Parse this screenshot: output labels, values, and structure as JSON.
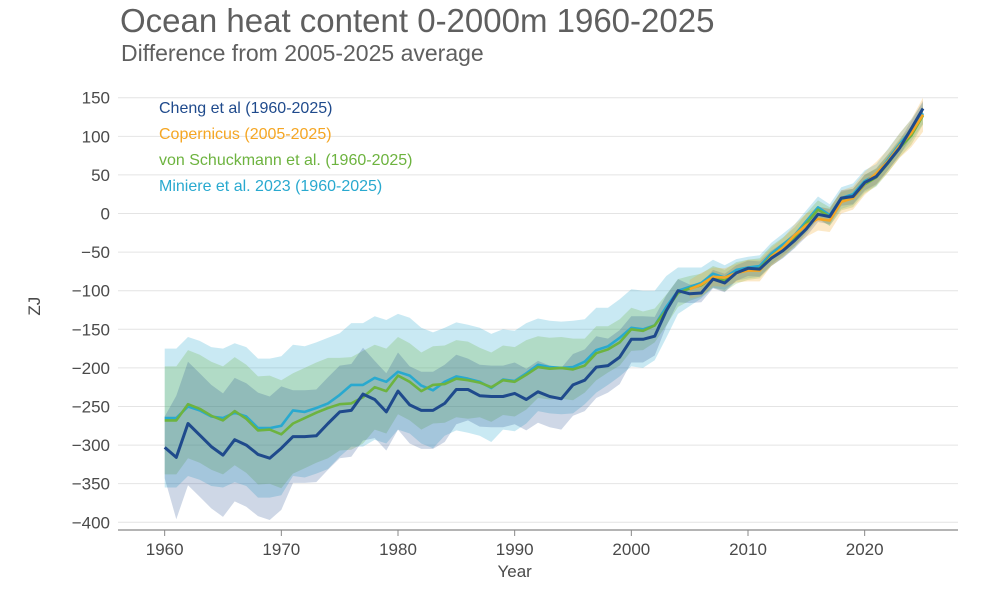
{
  "title": "Ocean heat content 0-2000m 1960-2025",
  "subtitle": "Difference from 2005-2025 average",
  "colors": {
    "cheng": "#1f4a8c",
    "copernicus": "#f5a623",
    "schuckmann": "#6db33f",
    "miniere": "#29a9cf",
    "grid": "#e4e4e4",
    "axis": "#888888"
  },
  "chart_data": {
    "type": "line",
    "title": "Ocean heat content 0-2000m 1960-2025",
    "subtitle": "Difference from 2005-2025 average",
    "xlabel": "Year",
    "ylabel": "ZJ",
    "xlim": [
      1956,
      2028
    ],
    "ylim": [
      -410,
      160
    ],
    "xticks": [
      1960,
      1970,
      1980,
      1990,
      2000,
      2010,
      2020
    ],
    "yticks": [
      150,
      100,
      50,
      0,
      -50,
      -100,
      -150,
      -200,
      -250,
      -300,
      -350,
      -400
    ],
    "ytick_labels": [
      "150",
      "100",
      "50",
      "0",
      "−50",
      "−100",
      "−150",
      "−200",
      "−250",
      "−300",
      "−350",
      "−400"
    ],
    "grid": true,
    "legend_position": "top-left",
    "series": [
      {
        "name": "Cheng et al (1960-2025)",
        "color_key": "cheng",
        "x_start": 1960,
        "values": [
          -303,
          -316,
          -272,
          -287,
          -302,
          -313,
          -293,
          -300,
          -312,
          -317,
          -304,
          -289,
          -289,
          -288,
          -272,
          -257,
          -255,
          -234,
          -241,
          -257,
          -230,
          -248,
          -255,
          -255,
          -246,
          -228,
          -228,
          -236,
          -237,
          -237,
          -233,
          -241,
          -231,
          -237,
          -240,
          -222,
          -216,
          -199,
          -197,
          -186,
          -163,
          -163,
          -159,
          -126,
          -100,
          -104,
          -103,
          -85,
          -90,
          -77,
          -71,
          -72,
          -58,
          -48,
          -35,
          -20,
          -1,
          -4,
          20,
          22,
          40,
          48,
          66,
          85,
          110,
          136
        ],
        "band": [
          40,
          80,
          80,
          80,
          80,
          80,
          80,
          80,
          80,
          80,
          80,
          60,
          60,
          60,
          60,
          60,
          60,
          60,
          50,
          50,
          50,
          50,
          50,
          50,
          50,
          45,
          40,
          40,
          40,
          40,
          40,
          40,
          40,
          40,
          40,
          40,
          40,
          40,
          35,
          35,
          30,
          30,
          25,
          20,
          15,
          12,
          12,
          12,
          12,
          10,
          10,
          10,
          10,
          10,
          10,
          10,
          10,
          10,
          10,
          10,
          10,
          10,
          10,
          10,
          10,
          10
        ]
      },
      {
        "name": "Copernicus (2005-2025)",
        "color_key": "copernicus",
        "x_start": 2005,
        "values": [
          -98,
          -92,
          -82,
          -83,
          -77,
          -74,
          -74,
          -56,
          -44,
          -28,
          -15,
          -7,
          -9,
          15,
          20,
          39,
          52,
          68,
          88,
          104,
          128
        ],
        "band": [
          12,
          15,
          12,
          12,
          12,
          14,
          14,
          12,
          12,
          14,
          15,
          15,
          15,
          15,
          15,
          15,
          15,
          15,
          16,
          18,
          22
        ]
      },
      {
        "name": "von Schuckmann et al. (1960-2025)",
        "color_key": "schuckmann",
        "x_start": 1960,
        "values": [
          -268,
          -268,
          -247,
          -253,
          -262,
          -268,
          -256,
          -266,
          -281,
          -280,
          -286,
          -272,
          -265,
          -258,
          -252,
          -247,
          -246,
          -238,
          -225,
          -230,
          -210,
          -218,
          -230,
          -222,
          -221,
          -214,
          -216,
          -219,
          -225,
          -216,
          -218,
          -209,
          -199,
          -201,
          -200,
          -202,
          -197,
          -181,
          -176,
          -167,
          -150,
          -152,
          -145,
          -125,
          -103,
          -97,
          -93,
          -82,
          -87,
          -77,
          -73,
          -71,
          -55,
          -44,
          -31,
          -13,
          5,
          -4,
          16,
          20,
          38,
          47,
          65,
          85,
          101,
          127
        ],
        "band": [
          70,
          70,
          70,
          70,
          70,
          70,
          70,
          70,
          70,
          70,
          70,
          65,
          65,
          65,
          65,
          60,
          60,
          60,
          55,
          55,
          50,
          50,
          50,
          50,
          50,
          50,
          50,
          45,
          45,
          45,
          45,
          45,
          40,
          40,
          40,
          40,
          35,
          35,
          30,
          30,
          28,
          25,
          22,
          20,
          18,
          16,
          15,
          14,
          14,
          14,
          13,
          13,
          13,
          13,
          13,
          13,
          12,
          12,
          12,
          12,
          12,
          12,
          12,
          12,
          12,
          12
        ]
      },
      {
        "name": "Miniere et al. 2023 (1960-2025)",
        "color_key": "miniere",
        "x_start": 1960,
        "values": [
          -265,
          -265,
          -250,
          -255,
          -263,
          -265,
          -258,
          -263,
          -278,
          -278,
          -275,
          -255,
          -257,
          -252,
          -246,
          -235,
          -222,
          -222,
          -213,
          -218,
          -205,
          -210,
          -223,
          -229,
          -218,
          -211,
          -214,
          -218,
          -226,
          -215,
          -217,
          -207,
          -196,
          -199,
          -200,
          -199,
          -192,
          -177,
          -172,
          -161,
          -148,
          -150,
          -145,
          -121,
          -100,
          -95,
          -90,
          -78,
          -83,
          -73,
          -70,
          -68,
          -52,
          -40,
          -28,
          -10,
          8,
          -2,
          20,
          25,
          42,
          50,
          70,
          90,
          108,
          130
        ],
        "band": [
          90,
          90,
          90,
          90,
          90,
          90,
          90,
          90,
          90,
          90,
          90,
          85,
          85,
          85,
          85,
          80,
          80,
          80,
          80,
          80,
          75,
          75,
          75,
          75,
          70,
          70,
          70,
          70,
          70,
          65,
          65,
          65,
          60,
          60,
          60,
          60,
          55,
          55,
          50,
          50,
          50,
          50,
          45,
          40,
          30,
          25,
          20,
          18,
          16,
          14,
          14,
          14,
          14,
          14,
          14,
          14,
          14,
          14,
          14,
          14,
          14,
          14,
          14,
          14,
          14,
          14
        ]
      }
    ]
  }
}
